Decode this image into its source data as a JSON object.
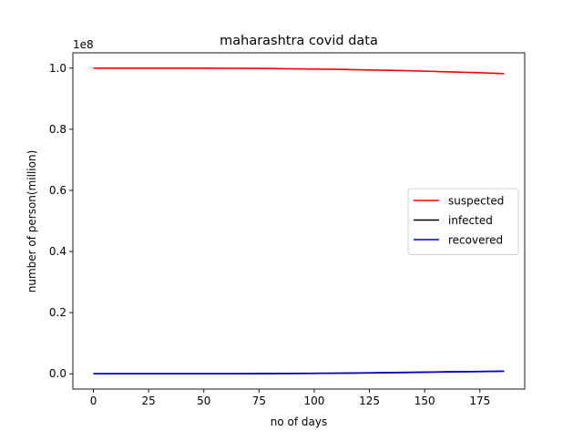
{
  "chart_data": {
    "type": "line",
    "title": "maharashtra covid data",
    "xlabel": "no of days",
    "ylabel": "number of person(million)",
    "y_offset_label": "1e8",
    "xlim": [
      -9.3,
      195.3
    ],
    "ylim": [
      -0.05,
      1.05
    ],
    "x_ticks": [
      0,
      25,
      50,
      75,
      100,
      125,
      150,
      175
    ],
    "x_tick_labels": [
      "0",
      "25",
      "50",
      "75",
      "100",
      "125",
      "150",
      "175"
    ],
    "y_ticks": [
      0.0,
      0.2,
      0.4,
      0.6,
      0.8,
      1.0
    ],
    "y_tick_labels": [
      "0.0",
      "0.2",
      "0.4",
      "0.6",
      "0.8",
      "1.0"
    ],
    "grid": false,
    "legend_position": "center-right",
    "series": [
      {
        "name": "suspected",
        "color": "#ff0000",
        "x": [
          0,
          25,
          50,
          75,
          100,
          110,
          125,
          140,
          150,
          160,
          175,
          186
        ],
        "y": [
          1.0,
          1.0,
          1.0,
          0.999,
          0.997,
          0.996,
          0.994,
          0.992,
          0.99,
          0.988,
          0.985,
          0.982
        ]
      },
      {
        "name": "infected",
        "color": "#000000",
        "x": [
          0,
          25,
          50,
          75,
          100,
          110,
          125,
          140,
          150,
          160,
          175,
          186
        ],
        "y": [
          0.0,
          0.0,
          0.0,
          0.0005,
          0.0015,
          0.002,
          0.003,
          0.0045,
          0.0055,
          0.0065,
          0.0075,
          0.0085
        ]
      },
      {
        "name": "recovered",
        "color": "#0000cd",
        "x": [
          0,
          25,
          50,
          75,
          100,
          110,
          125,
          140,
          150,
          160,
          175,
          186
        ],
        "y": [
          0.0,
          0.0,
          0.0,
          0.0004,
          0.0012,
          0.0018,
          0.0027,
          0.004,
          0.005,
          0.006,
          0.0072,
          0.0082
        ]
      }
    ]
  }
}
